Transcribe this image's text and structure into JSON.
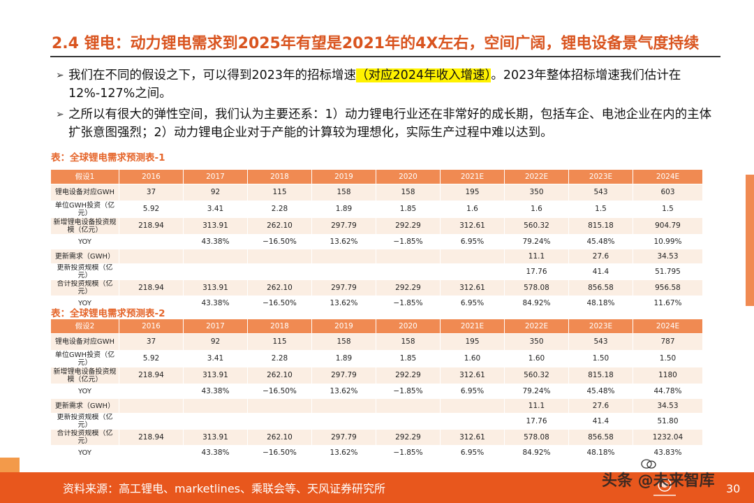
{
  "title": "2.4 锂电：动力锂电需求到2025年有望是2021年的4X左右，空间广阔，锂电设备景气度持续",
  "bullets": [
    {
      "pre": "我们在不同的假设之下，可以得到2023年的招标增速",
      "highlight": "（对应2024年收入增速）",
      "post": "。2023年整体招标增速我们估计在12%-127%之间。"
    },
    {
      "text": "之所以有很大的弹性空间，我们认为主要还系：1）动力锂电行业还在非常好的成长期，包括车企、电池企业在内的主体扩张意图强烈；2）动力锂电企业对于产能的计算较为理想化，实际生产过程中难以达到。"
    }
  ],
  "tables": [
    {
      "caption": "表：全球锂电需求预测表-1",
      "header": [
        "假设1",
        "2016",
        "2017",
        "2018",
        "2019",
        "2020",
        "2021E",
        "2022E",
        "2023E",
        "2024E"
      ],
      "rows": [
        [
          "锂电设备对应GWH",
          "37",
          "92",
          "115",
          "158",
          "158",
          "195",
          "350",
          "543",
          "603"
        ],
        [
          "单位GWH投资（亿元）",
          "5.92",
          "3.41",
          "2.28",
          "1.89",
          "1.85",
          "1.6",
          "1.6",
          "1.5",
          "1.5"
        ],
        [
          "新增锂电设备投资规模（亿元）",
          "218.94",
          "313.91",
          "262.10",
          "297.79",
          "292.29",
          "312.61",
          "560.32",
          "815.18",
          "904.79"
        ],
        [
          "YOY",
          "",
          "43.38%",
          "−16.50%",
          "13.62%",
          "−1.85%",
          "6.95%",
          "79.24%",
          "45.48%",
          "10.99%"
        ],
        [
          "更新需求（GWH）",
          "",
          "",
          "",
          "",
          "",
          "",
          "11.1",
          "27.6",
          "34.53"
        ],
        [
          "更新投资规模（亿元）",
          "",
          "",
          "",
          "",
          "",
          "",
          "17.76",
          "41.4",
          "51.795"
        ],
        [
          "合计投资规模（亿元）",
          "218.94",
          "313.91",
          "262.10",
          "297.79",
          "292.29",
          "312.61",
          "578.08",
          "856.58",
          "956.58"
        ],
        [
          "YOY",
          "",
          "43.38%",
          "−16.50%",
          "13.62%",
          "−1.85%",
          "6.95%",
          "84.92%",
          "48.18%",
          "11.67%"
        ]
      ]
    },
    {
      "caption": "表：全球锂电需求预测表-2",
      "header": [
        "假设2",
        "2016",
        "2017",
        "2018",
        "2019",
        "2020",
        "2021E",
        "2022E",
        "2023E",
        "2024E"
      ],
      "rows": [
        [
          "锂电设备对应GWH",
          "37",
          "92",
          "115",
          "158",
          "158",
          "195",
          "350",
          "543",
          "787"
        ],
        [
          "单位GWH投资（亿元）",
          "5.92",
          "3.41",
          "2.28",
          "1.89",
          "1.85",
          "1.60",
          "1.60",
          "1.50",
          "1.50"
        ],
        [
          "新增锂电设备投资规模（亿元）",
          "218.94",
          "313.91",
          "262.10",
          "297.79",
          "292.29",
          "312.61",
          "560.32",
          "815.18",
          "1180"
        ],
        [
          "YOY",
          "",
          "43.38%",
          "−16.50%",
          "13.62%",
          "−1.85%",
          "6.95%",
          "79.24%",
          "45.48%",
          "44.78%"
        ],
        [
          "更新需求（GWH）",
          "",
          "",
          "",
          "",
          "",
          "",
          "11.1",
          "27.6",
          "34.53"
        ],
        [
          "更新投资规模（亿元）",
          "",
          "",
          "",
          "",
          "",
          "",
          "17.76",
          "41.4",
          "51.80"
        ],
        [
          "合计投资规模（亿元）",
          "218.94",
          "313.91",
          "262.10",
          "297.79",
          "292.29",
          "312.61",
          "578.08",
          "856.58",
          "1232.04"
        ],
        [
          "YOY",
          "",
          "43.38%",
          "−16.50%",
          "13.62%",
          "−1.85%",
          "6.95%",
          "84.92%",
          "48.18%",
          "43.83%"
        ]
      ]
    }
  ],
  "footer": {
    "source": "资料来源：高工锂电、marketlines、乘联会等、天风证券研究所",
    "watermark": "头条 @未来智库",
    "page": "30"
  },
  "colors": {
    "title": "#d9541f",
    "header_fill": "#f08a52",
    "row_fill": "#fbeee3",
    "footer_fill": "#e8571d",
    "highlight": "#fff200"
  }
}
